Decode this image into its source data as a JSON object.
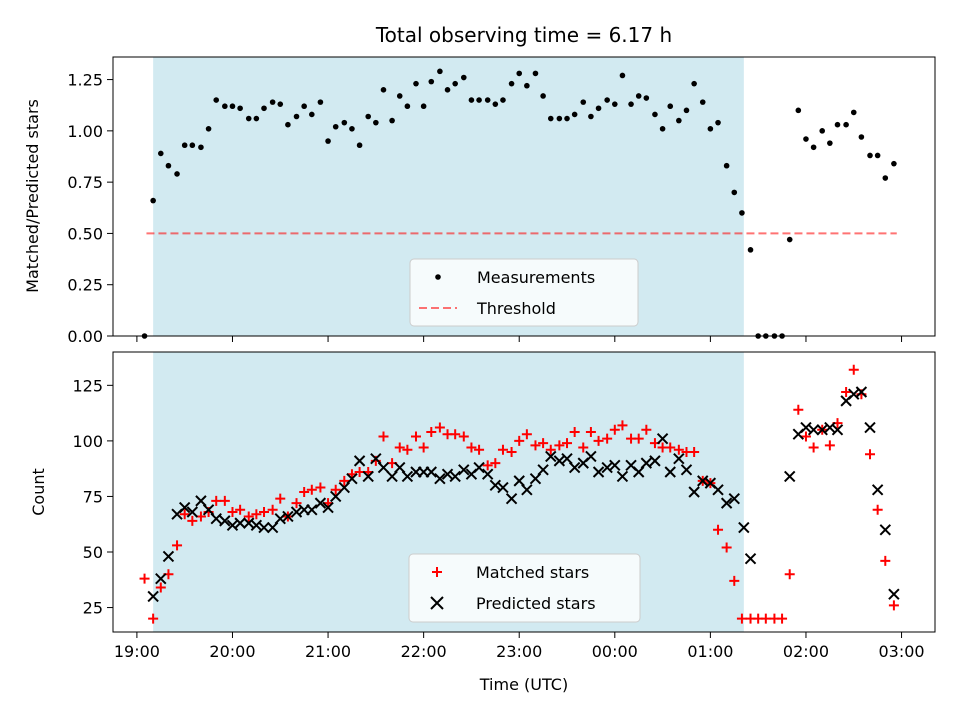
{
  "title": "Total observing time = 6.17 h",
  "colors": {
    "shade": "#add8e6",
    "measurement": "#000000",
    "threshold": "#ff0000",
    "matched": "#ff0000",
    "predicted": "#000000"
  },
  "chart_data": [
    {
      "type": "scatter",
      "ylabel": "Matched/Predicted stars",
      "xlim": [
        18.75,
        27.35
      ],
      "ylim": [
        0.0,
        1.36
      ],
      "xticks": [
        19,
        20,
        21,
        22,
        23,
        24,
        25,
        26,
        27
      ],
      "yticks": [
        {
          "value": 0.0,
          "label": "0.00"
        },
        {
          "value": 0.25,
          "label": "0.25"
        },
        {
          "value": 0.5,
          "label": "0.50"
        },
        {
          "value": 0.75,
          "label": "0.75"
        },
        {
          "value": 1.0,
          "label": "1.00"
        },
        {
          "value": 1.25,
          "label": "1.25"
        }
      ],
      "shaded_span": [
        19.17,
        25.35
      ],
      "legend": {
        "placement": "lower center",
        "entries": [
          "Measurements",
          "Threshold"
        ]
      },
      "series": [
        {
          "name": "Measurements",
          "marker": "dot",
          "x": [
            19.08,
            19.17,
            19.25,
            19.33,
            19.42,
            19.5,
            19.58,
            19.67,
            19.75,
            19.83,
            19.92,
            20.0,
            20.08,
            20.17,
            20.25,
            20.33,
            20.42,
            20.5,
            20.58,
            20.67,
            20.75,
            20.83,
            20.92,
            21.0,
            21.08,
            21.17,
            21.25,
            21.33,
            21.42,
            21.5,
            21.58,
            21.67,
            21.75,
            21.83,
            21.92,
            22.0,
            22.08,
            22.17,
            22.25,
            22.33,
            22.42,
            22.5,
            22.58,
            22.67,
            22.75,
            22.83,
            22.92,
            23.0,
            23.08,
            23.17,
            23.25,
            23.33,
            23.42,
            23.5,
            23.58,
            23.67,
            23.75,
            23.83,
            23.92,
            24.0,
            24.08,
            24.17,
            24.25,
            24.33,
            24.42,
            24.5,
            24.58,
            24.67,
            24.75,
            24.83,
            24.92,
            25.0,
            25.08,
            25.17,
            25.25,
            25.33,
            25.42,
            25.5,
            25.58,
            25.67,
            25.75,
            25.83,
            25.92,
            26.0,
            26.08,
            26.17,
            26.25,
            26.33,
            26.42,
            26.5,
            26.58,
            26.67,
            26.75,
            26.83,
            26.92
          ],
          "values": [
            0.0,
            0.66,
            0.89,
            0.83,
            0.79,
            0.93,
            0.93,
            0.92,
            1.01,
            1.15,
            1.12,
            1.12,
            1.11,
            1.06,
            1.06,
            1.11,
            1.14,
            1.13,
            1.03,
            1.07,
            1.12,
            1.08,
            1.14,
            0.95,
            1.02,
            1.04,
            1.01,
            0.93,
            1.07,
            1.04,
            1.2,
            1.05,
            1.17,
            1.12,
            1.23,
            1.12,
            1.24,
            1.29,
            1.2,
            1.23,
            1.26,
            1.15,
            1.15,
            1.15,
            1.13,
            1.15,
            1.23,
            1.28,
            1.22,
            1.28,
            1.17,
            1.06,
            1.06,
            1.06,
            1.08,
            1.14,
            1.07,
            1.11,
            1.15,
            1.13,
            1.27,
            1.13,
            1.17,
            1.16,
            1.08,
            1.01,
            1.12,
            1.05,
            1.1,
            1.23,
            1.14,
            1.01,
            1.04,
            0.83,
            0.7,
            0.6,
            0.42,
            0.0,
            0.0,
            0.0,
            0.0,
            0.47,
            1.1,
            0.96,
            0.92,
            1.0,
            0.94,
            1.03,
            1.03,
            1.09,
            0.97,
            0.88,
            0.88,
            0.77,
            0.84
          ]
        },
        {
          "name": "Threshold",
          "marker": "dashed-line",
          "x": [
            19.1,
            26.95
          ],
          "values": [
            0.5,
            0.5
          ]
        }
      ]
    },
    {
      "type": "scatter",
      "xlabel": "Time (UTC)",
      "ylabel": "Count",
      "xlim": [
        18.75,
        27.35
      ],
      "ylim": [
        14,
        140
      ],
      "xticks": [
        {
          "value": 19,
          "label": "19:00"
        },
        {
          "value": 20,
          "label": "20:00"
        },
        {
          "value": 21,
          "label": "21:00"
        },
        {
          "value": 22,
          "label": "22:00"
        },
        {
          "value": 23,
          "label": "23:00"
        },
        {
          "value": 24,
          "label": "00:00"
        },
        {
          "value": 25,
          "label": "01:00"
        },
        {
          "value": 26,
          "label": "02:00"
        },
        {
          "value": 27,
          "label": "03:00"
        }
      ],
      "yticks": [
        {
          "value": 25,
          "label": "25"
        },
        {
          "value": 50,
          "label": "50"
        },
        {
          "value": 75,
          "label": "75"
        },
        {
          "value": 100,
          "label": "100"
        },
        {
          "value": 125,
          "label": "125"
        }
      ],
      "shaded_span": [
        19.17,
        25.35
      ],
      "legend": {
        "placement": "lower center",
        "entries": [
          "Matched stars",
          "Predicted stars"
        ]
      },
      "series": [
        {
          "name": "Matched stars",
          "marker": "plus",
          "x": [
            19.08,
            19.17,
            19.25,
            19.33,
            19.42,
            19.5,
            19.58,
            19.67,
            19.75,
            19.83,
            19.92,
            20.0,
            20.08,
            20.17,
            20.25,
            20.33,
            20.42,
            20.5,
            20.58,
            20.67,
            20.75,
            20.83,
            20.92,
            21.0,
            21.08,
            21.17,
            21.25,
            21.33,
            21.42,
            21.5,
            21.58,
            21.67,
            21.75,
            21.83,
            21.92,
            22.0,
            22.08,
            22.17,
            22.25,
            22.33,
            22.42,
            22.5,
            22.58,
            22.67,
            22.75,
            22.83,
            22.92,
            23.0,
            23.08,
            23.17,
            23.25,
            23.33,
            23.42,
            23.5,
            23.58,
            23.67,
            23.75,
            23.83,
            23.92,
            24.0,
            24.08,
            24.17,
            24.25,
            24.33,
            24.42,
            24.5,
            24.58,
            24.67,
            24.75,
            24.83,
            24.92,
            25.0,
            25.08,
            25.17,
            25.25,
            25.33,
            25.42,
            25.5,
            25.58,
            25.67,
            25.75,
            25.83,
            25.92,
            26.0,
            26.08,
            26.17,
            26.25,
            26.33,
            26.42,
            26.5,
            26.58,
            26.67,
            26.75,
            26.83,
            26.92
          ],
          "values": [
            38,
            20,
            34,
            40,
            53,
            67,
            64,
            66,
            68,
            73,
            73,
            68,
            69,
            66,
            67,
            68,
            69,
            74,
            66,
            72,
            77,
            78,
            79,
            72,
            78,
            82,
            85,
            86,
            86,
            91,
            102,
            90,
            97,
            96,
            102,
            97,
            104,
            106,
            103,
            103,
            102,
            97,
            96,
            89,
            90,
            96,
            95,
            100,
            103,
            98,
            99,
            96,
            98,
            99,
            104,
            97,
            104,
            100,
            101,
            105,
            107,
            101,
            101,
            105,
            99,
            97,
            97,
            96,
            95,
            95,
            82,
            81,
            60,
            52,
            37,
            20,
            20,
            20,
            20,
            20,
            20,
            40,
            114,
            102,
            97,
            105,
            98,
            108,
            122,
            132,
            121,
            94,
            69,
            46,
            26
          ]
        },
        {
          "name": "Predicted stars",
          "marker": "x",
          "x": [
            19.17,
            19.25,
            19.33,
            19.42,
            19.5,
            19.58,
            19.67,
            19.75,
            19.83,
            19.92,
            20.0,
            20.08,
            20.17,
            20.25,
            20.33,
            20.42,
            20.5,
            20.58,
            20.67,
            20.75,
            20.83,
            20.92,
            21.0,
            21.08,
            21.17,
            21.25,
            21.33,
            21.42,
            21.5,
            21.58,
            21.67,
            21.75,
            21.83,
            21.92,
            22.0,
            22.08,
            22.17,
            22.25,
            22.33,
            22.42,
            22.5,
            22.58,
            22.67,
            22.75,
            22.83,
            22.92,
            23.0,
            23.08,
            23.17,
            23.25,
            23.33,
            23.42,
            23.5,
            23.58,
            23.67,
            23.75,
            23.83,
            23.92,
            24.0,
            24.08,
            24.17,
            24.25,
            24.33,
            24.42,
            24.5,
            24.58,
            24.67,
            24.75,
            24.83,
            24.92,
            25.0,
            25.08,
            25.17,
            25.25,
            25.35,
            25.42,
            25.83,
            25.92,
            26.0,
            26.08,
            26.17,
            26.25,
            26.33,
            26.42,
            26.5,
            26.58,
            26.67,
            26.75,
            26.83,
            26.92
          ],
          "values": [
            30,
            38,
            48,
            67,
            70,
            68,
            73,
            69,
            65,
            64,
            62,
            63,
            63,
            62,
            61,
            61,
            65,
            66,
            68,
            69,
            69,
            72,
            70,
            75,
            79,
            83,
            91,
            84,
            92,
            88,
            84,
            88,
            84,
            86,
            86,
            86,
            83,
            85,
            84,
            87,
            85,
            88,
            85,
            80,
            79,
            74,
            82,
            78,
            83,
            87,
            93,
            91,
            92,
            88,
            90,
            93,
            86,
            88,
            89,
            84,
            89,
            86,
            90,
            91,
            101,
            86,
            92,
            87,
            77,
            82,
            81,
            78,
            72,
            74,
            61,
            47,
            84,
            103,
            106,
            105,
            105,
            106,
            105,
            118,
            121,
            122,
            106,
            78,
            60,
            31
          ]
        }
      ]
    }
  ]
}
